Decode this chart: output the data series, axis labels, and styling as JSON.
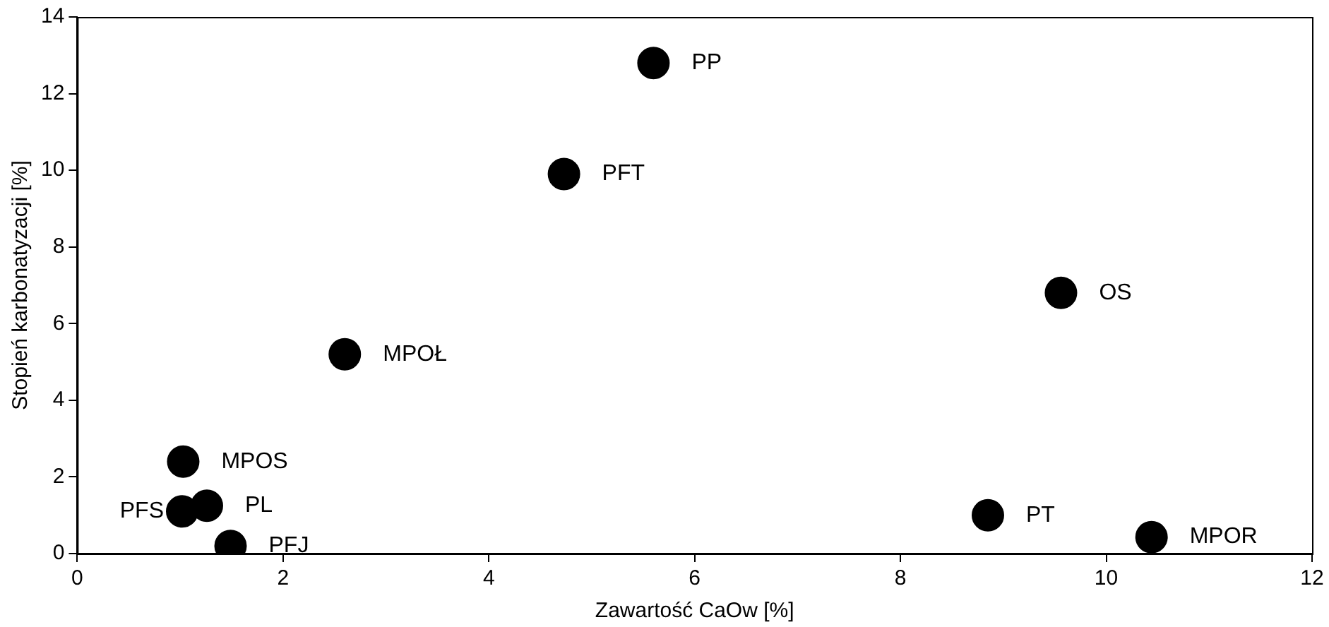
{
  "chart_data": {
    "type": "scatter",
    "xlabel": "Zawartość CaOw [%]",
    "ylabel": "Stopień karbonatyzacji [%]",
    "x": [
      5.6,
      4.73,
      9.56,
      2.6,
      1.03,
      1.02,
      1.26,
      1.49,
      8.85,
      10.44
    ],
    "series": [
      {
        "color": "#000000",
        "values": [
          12.8,
          9.9,
          6.8,
          5.2,
          2.4,
          1.1,
          1.25,
          0.2,
          1.0,
          0.43
        ]
      }
    ],
    "annotations": [
      {
        "text": "PP",
        "x": 5.6,
        "y": 12.8
      },
      {
        "text": "PFT",
        "x": 4.73,
        "y": 9.9
      },
      {
        "text": "OS",
        "x": 9.56,
        "y": 6.8
      },
      {
        "text": "MPOŁ",
        "x": 2.6,
        "y": 5.2
      },
      {
        "text": "MPOS",
        "x": 1.03,
        "y": 2.4
      },
      {
        "text": "PFS",
        "x": 1.02,
        "y": 1.1
      },
      {
        "text": "PL",
        "x": 1.26,
        "y": 1.25
      },
      {
        "text": "PFJ",
        "x": 1.49,
        "y": 0.2
      },
      {
        "text": "PT",
        "x": 8.85,
        "y": 1.0
      },
      {
        "text": "MPOR",
        "x": 10.44,
        "y": 0.43
      }
    ],
    "xlim": [
      0,
      12
    ],
    "xticks": [
      0,
      2,
      4,
      6,
      8,
      10,
      12
    ],
    "ylim": [
      0,
      14
    ],
    "yticks": [
      0,
      2,
      4,
      6,
      8,
      10,
      12,
      14
    ],
    "grid": false,
    "legend": false,
    "marker": "circle"
  }
}
